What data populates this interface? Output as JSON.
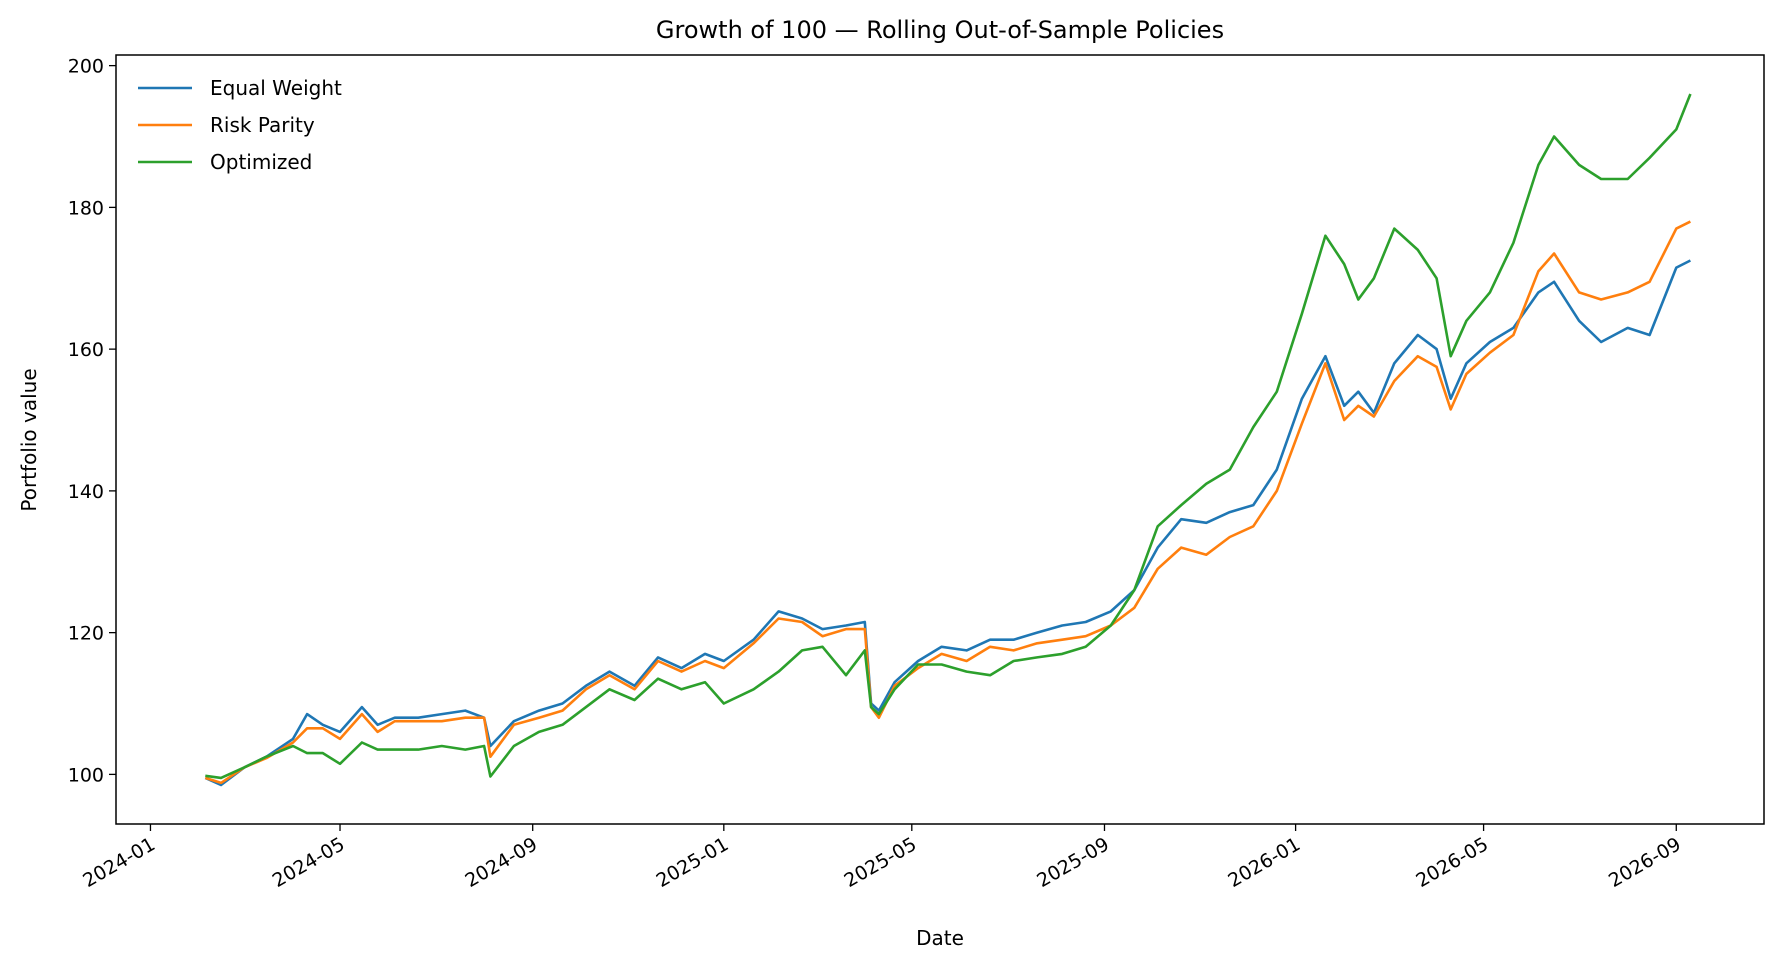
{
  "chart_data": {
    "type": "line",
    "title": "Growth of 100 — Rolling Out-of-Sample Policies",
    "xlabel": "Date",
    "ylabel": "Portfolio value",
    "x_ticks": [
      "2024-01",
      "2024-05",
      "2024-09",
      "2025-01",
      "2025-05",
      "2025-09",
      "2026-01",
      "2026-05",
      "2026-09"
    ],
    "y_ticks": [
      100,
      120,
      140,
      160,
      180,
      200
    ],
    "xlim": [
      "2023-12-10",
      "2026-10-27"
    ],
    "ylim": [
      93,
      201.5
    ],
    "grid": false,
    "legend": "top-left",
    "x": [
      "2024-02-05",
      "2024-02-15",
      "2024-03-01",
      "2024-03-15",
      "2024-04-01",
      "2024-04-10",
      "2024-04-20",
      "2024-05-01",
      "2024-05-15",
      "2024-05-25",
      "2024-06-05",
      "2024-06-20",
      "2024-07-05",
      "2024-07-20",
      "2024-08-01",
      "2024-08-05",
      "2024-08-20",
      "2024-09-05",
      "2024-09-20",
      "2024-10-05",
      "2024-10-20",
      "2024-11-05",
      "2024-11-20",
      "2024-12-05",
      "2024-12-20",
      "2025-01-01",
      "2025-01-20",
      "2025-02-05",
      "2025-02-20",
      "2025-03-05",
      "2025-03-20",
      "2025-04-01",
      "2025-04-05",
      "2025-04-10",
      "2025-04-20",
      "2025-05-05",
      "2025-05-20",
      "2025-06-05",
      "2025-06-20",
      "2025-07-05",
      "2025-07-20",
      "2025-08-05",
      "2025-08-20",
      "2025-09-05",
      "2025-09-20",
      "2025-10-05",
      "2025-10-20",
      "2025-11-05",
      "2025-11-20",
      "2025-12-05",
      "2025-12-20",
      "2026-01-05",
      "2026-01-20",
      "2026-02-01",
      "2026-02-10",
      "2026-02-20",
      "2026-03-05",
      "2026-03-20",
      "2026-04-01",
      "2026-04-10",
      "2026-04-20",
      "2026-05-05",
      "2026-05-20",
      "2026-06-05",
      "2026-06-15",
      "2026-07-01",
      "2026-07-15",
      "2026-08-01",
      "2026-08-15",
      "2026-09-01",
      "2026-09-10"
    ],
    "series": [
      {
        "name": "Equal Weight",
        "color": "#1f77b4",
        "values": [
          99.5,
          98.5,
          101.0,
          102.5,
          105.0,
          108.5,
          107.0,
          106.0,
          109.5,
          107.0,
          108.0,
          108.0,
          108.5,
          109.0,
          108.0,
          104.0,
          107.5,
          109.0,
          110.0,
          112.5,
          114.5,
          112.5,
          116.5,
          115.0,
          117.0,
          116.0,
          119.0,
          123.0,
          122.0,
          120.5,
          121.0,
          121.5,
          110.0,
          109.0,
          113.0,
          116.0,
          118.0,
          117.5,
          119.0,
          119.0,
          120.0,
          121.0,
          121.5,
          123.0,
          126.0,
          132.0,
          136.0,
          135.5,
          137.0,
          138.0,
          143.0,
          153.0,
          159.0,
          152.0,
          154.0,
          151.0,
          158.0,
          162.0,
          160.0,
          153.0,
          158.0,
          161.0,
          163.0,
          168.0,
          169.5,
          164.0,
          161.0,
          163.0,
          162.0,
          171.5,
          172.5
        ]
      },
      {
        "name": "Risk Parity",
        "color": "#ff7f0e",
        "values": [
          99.5,
          98.8,
          101.0,
          102.3,
          104.5,
          106.5,
          106.5,
          105.0,
          108.5,
          106.0,
          107.5,
          107.5,
          107.5,
          108.0,
          108.0,
          102.5,
          107.0,
          108.0,
          109.0,
          112.0,
          114.0,
          112.0,
          116.0,
          114.5,
          116.0,
          115.0,
          118.5,
          122.0,
          121.5,
          119.5,
          120.5,
          120.5,
          109.5,
          108.0,
          112.5,
          115.0,
          117.0,
          116.0,
          118.0,
          117.5,
          118.5,
          119.0,
          119.5,
          121.0,
          123.5,
          129.0,
          132.0,
          131.0,
          133.5,
          135.0,
          140.0,
          149.5,
          158.0,
          150.0,
          152.0,
          150.5,
          155.5,
          159.0,
          157.5,
          151.5,
          156.5,
          159.5,
          162.0,
          171.0,
          173.5,
          168.0,
          167.0,
          168.0,
          169.5,
          177.0,
          178.0
        ]
      },
      {
        "name": "Optimized",
        "color": "#2ca02c",
        "values": [
          99.8,
          99.5,
          101.0,
          102.5,
          104.0,
          103.0,
          103.0,
          101.5,
          104.5,
          103.5,
          103.5,
          103.5,
          104.0,
          103.5,
          104.0,
          99.7,
          104.0,
          106.0,
          107.0,
          109.5,
          112.0,
          110.5,
          113.5,
          112.0,
          113.0,
          110.0,
          112.0,
          114.5,
          117.5,
          118.0,
          114.0,
          117.5,
          109.5,
          108.5,
          112.0,
          115.5,
          115.5,
          114.5,
          114.0,
          116.0,
          116.5,
          117.0,
          118.0,
          121.0,
          126.0,
          135.0,
          138.0,
          141.0,
          143.0,
          149.0,
          154.0,
          165.0,
          176.0,
          172.0,
          167.0,
          170.0,
          177.0,
          174.0,
          170.0,
          159.0,
          164.0,
          168.0,
          175.0,
          186.0,
          190.0,
          186.0,
          184.0,
          184.0,
          187.0,
          191.0,
          196.0
        ]
      }
    ]
  }
}
